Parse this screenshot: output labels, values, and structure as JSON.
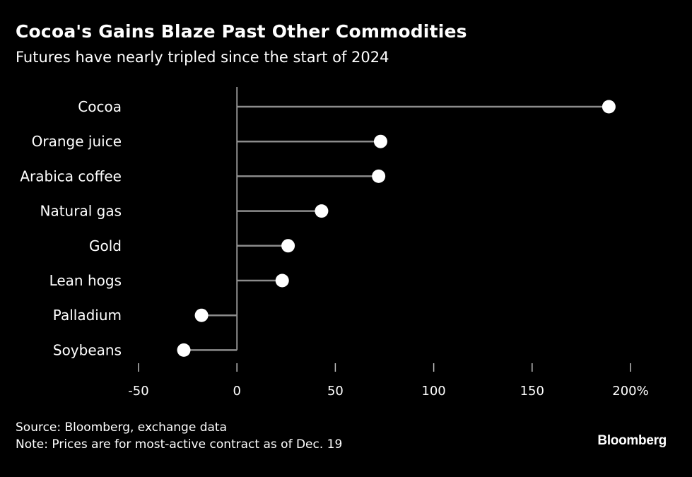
{
  "chart_data": {
    "type": "lollipop",
    "title": "Cocoa's Gains Blaze Past Other Commodities",
    "subtitle": "Futures have nearly tripled since the start of 2024",
    "categories": [
      "Cocoa",
      "Orange juice",
      "Arabica coffee",
      "Natural gas",
      "Gold",
      "Lean hogs",
      "Palladium",
      "Soybeans"
    ],
    "values": [
      189,
      73,
      72,
      43,
      26,
      23,
      -18,
      -27
    ],
    "xlim": [
      -50,
      200
    ],
    "x_ticks": [
      -50,
      0,
      50,
      100,
      150,
      200
    ],
    "x_tick_labels": [
      "-50",
      "0",
      "50",
      "100",
      "150",
      "200%"
    ],
    "grid": false,
    "colors": {
      "background": "#000000",
      "text": "#ffffff",
      "stem": "#8c8c8c",
      "marker": "#ffffff",
      "axis": "#bfbfbf"
    }
  },
  "footer": {
    "source": "Source: Bloomberg, exchange data",
    "note": "Note: Prices are for most-active contract as of Dec. 19",
    "logo": "Bloomberg"
  }
}
